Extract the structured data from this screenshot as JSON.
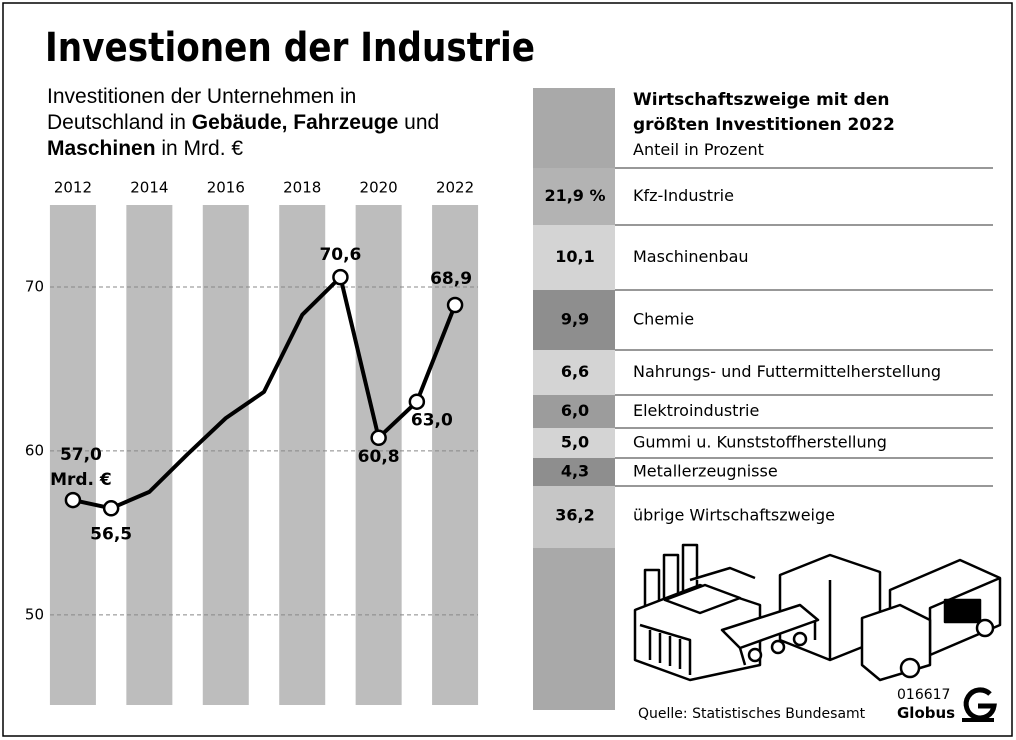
{
  "title": "Investionen der Industrie",
  "subtitle": [
    "Investitionen der Unternehmen in",
    "Deutschland in",
    "Gebäude, Fahrzeuge",
    "und",
    "Maschinen",
    "in Mrd. €"
  ],
  "chart_data": [
    {
      "type": "line",
      "x": [
        2012,
        2013,
        2014,
        2015,
        2016,
        2017,
        2018,
        2019,
        2020,
        2021,
        2022
      ],
      "series": [
        {
          "color": "#000000",
          "values": [
            57.0,
            56.5,
            57.5,
            59.8,
            62.0,
            63.6,
            68.3,
            70.6,
            60.8,
            63.0,
            68.9
          ],
          "value_labels": [
            "57,0",
            "56,5",
            null,
            null,
            null,
            null,
            null,
            "70,6",
            "60,8",
            "63,0",
            "68,9"
          ]
        }
      ],
      "unit_label": "Mrd. €",
      "xlim": [
        2011.4,
        2022.6
      ],
      "xticks": [
        2012,
        2014,
        2016,
        2018,
        2020,
        2022
      ],
      "ylim": [
        44.5,
        75
      ],
      "yticks": [
        50,
        60,
        70
      ],
      "grid": true,
      "stripe_color": "#bdbdbd"
    },
    {
      "type": "share_list",
      "title": "Wirtschaftszweige mit den größten Investitionen 2022",
      "subtitle": "Anteil in Prozent",
      "categories": [
        "Kfz-Industrie",
        "Maschinenbau",
        "Chemie",
        "Nahrungs- und Futtermittelherstellung",
        "Elektroindustrie",
        "Gummi u. Kunststoffherstellung",
        "Metallerzeugnisse",
        "übrige Wirtschaftszweige"
      ],
      "values": [
        21.9,
        10.1,
        9.9,
        6.6,
        6.0,
        5.0,
        4.3,
        36.2
      ],
      "value_labels": [
        "21,9 %",
        "10,1",
        "9,9",
        "6,6",
        "6,0",
        "5,0",
        "4,3",
        "36,2"
      ],
      "colors": [
        "#b3b3b3",
        "#d4d4d4",
        "#8e8e8e",
        "#d4d4d4",
        "#9c9c9c",
        "#d4d4d4",
        "#8e8e8e",
        "#c6c6c6"
      ]
    }
  ],
  "source": "Quelle: Statistisches Bundesamt",
  "graphic_id": "016617",
  "publisher": "Globus"
}
